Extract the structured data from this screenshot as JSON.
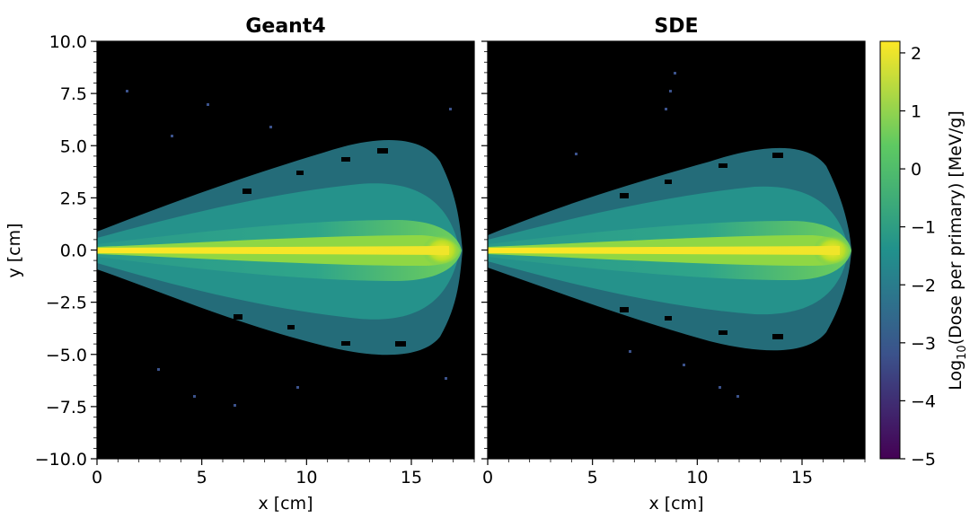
{
  "chart_data": [
    {
      "type": "heatmap",
      "title": "Geant4",
      "xlabel": "x [cm]",
      "ylabel": "y [cm]",
      "xlim": [
        0,
        18
      ],
      "ylim": [
        -10,
        10
      ],
      "xticks": [
        "0",
        "5",
        "10",
        "15"
      ],
      "yticks": [
        "10.0",
        "7.5",
        "5.0",
        "2.5",
        "0.0",
        "−2.5",
        "−5.0",
        "−7.5",
        "−10.0"
      ],
      "description_values": {
        "beam_axis_y": 0.0,
        "dose_extent_x_end": 17.5
      }
    },
    {
      "type": "heatmap",
      "title": "SDE",
      "xlabel": "x [cm]",
      "ylabel": "",
      "xlim": [
        0,
        18
      ],
      "ylim": [
        -10,
        10
      ],
      "xticks": [
        "0",
        "5",
        "10",
        "15"
      ],
      "description_values": {
        "beam_axis_y": 0.0,
        "dose_extent_x_end": 17.5
      }
    }
  ],
  "colorbar": {
    "label_prefix": "Log",
    "label_sub": "10",
    "label_suffix": "(Dose per primary) [MeV/g]",
    "range": [
      -5,
      2.2
    ],
    "ticks": [
      "2",
      "1",
      "0",
      "−1",
      "−2",
      "−3",
      "−4",
      "−5"
    ],
    "colormap": "viridis",
    "colors": [
      "#440154",
      "#3b528b",
      "#21918c",
      "#5ec962",
      "#fde725"
    ]
  },
  "background_color": "#000000"
}
